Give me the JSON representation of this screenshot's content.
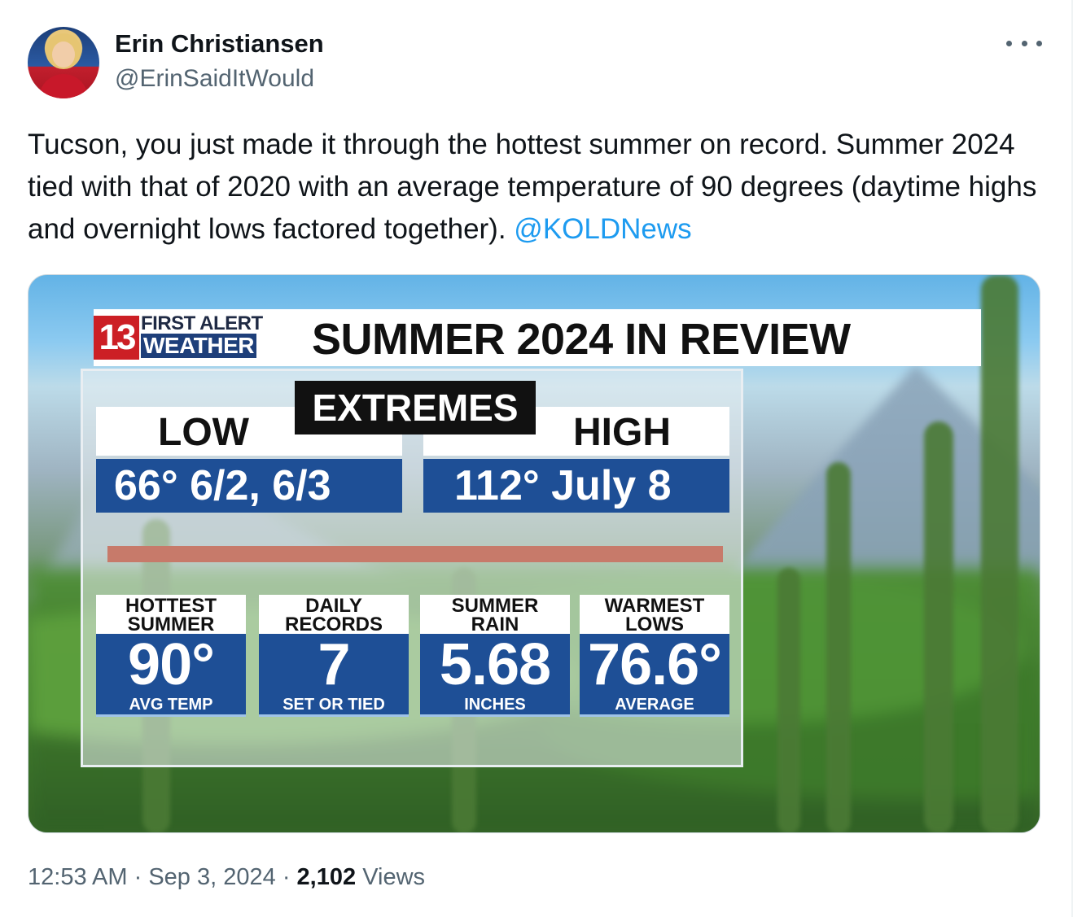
{
  "author": {
    "name": "Erin Christiansen",
    "handle": "@ErinSaidItWould"
  },
  "tweet": {
    "text": "Tucson, you just made it through the hottest summer on record. Summer 2024 tied with that of 2020 with an average temperature of 90 degrees (daytime highs and overnight lows factored together). ",
    "mention": "@KOLDNews"
  },
  "graphic": {
    "logo_number": "13",
    "logo_line1": "FIRST ALERT",
    "logo_line2": "WEATHER",
    "title": "SUMMER 2024 IN REVIEW",
    "extremes_label": "EXTREMES",
    "low_label": "LOW",
    "low_value": "66° 6/2, 6/3",
    "high_label": "HIGH",
    "high_value": "112° July 8",
    "stats": [
      {
        "head1": "HOTTEST",
        "head2": "SUMMER",
        "value": "90°",
        "sub": "AVG TEMP"
      },
      {
        "head1": "DAILY",
        "head2": "RECORDS",
        "value": "7",
        "sub": "SET OR TIED"
      },
      {
        "head1": "SUMMER",
        "head2": "RAIN",
        "value": "5.68",
        "sub": "INCHES"
      },
      {
        "head1": "WARMEST",
        "head2": "LOWS",
        "value": "76.6°",
        "sub": "AVERAGE"
      }
    ]
  },
  "meta": {
    "time": "12:53 AM",
    "separator": "·",
    "date": "Sep 3, 2024",
    "views_count": "2,102",
    "views_label": "Views"
  },
  "colors": {
    "link": "#1d9bf0",
    "secondary_text": "#536471",
    "graphic_blue": "#1e4f96",
    "logo_red": "#cc1f25"
  },
  "icons": {
    "more": "more-dots-icon"
  }
}
